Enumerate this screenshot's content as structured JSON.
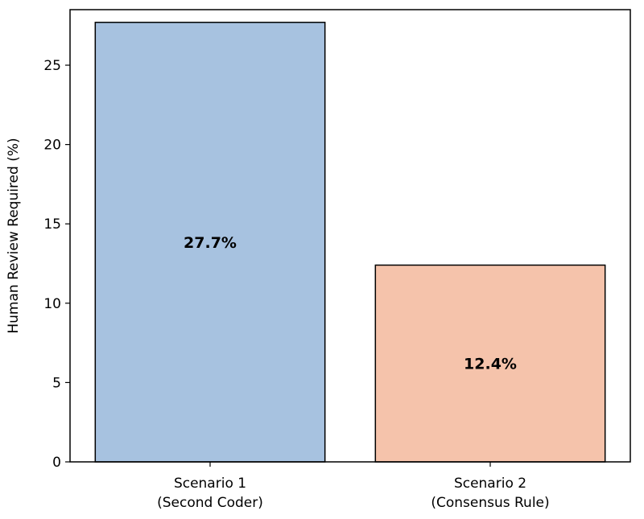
{
  "chart_data": {
    "type": "bar",
    "title": "",
    "xlabel": "",
    "ylabel": "Human Review Required (%)",
    "categories": [
      [
        "Scenario 1",
        "(Second Coder)"
      ],
      [
        "Scenario 2",
        "(Consensus Rule)"
      ]
    ],
    "values": [
      27.7,
      12.4
    ],
    "value_labels": [
      "27.7%",
      "12.4%"
    ],
    "colors": [
      "#a7c2e0",
      "#f5c3ab"
    ],
    "ylim": [
      0,
      28.5
    ],
    "yticks": [
      0,
      5,
      10,
      15,
      20,
      25
    ],
    "grid": false,
    "legend": "none"
  }
}
